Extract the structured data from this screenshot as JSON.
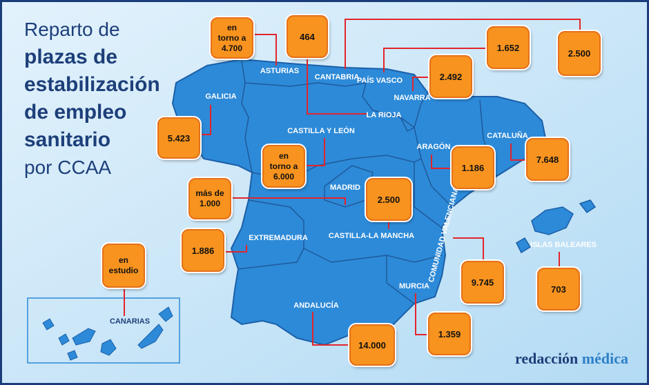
{
  "title": {
    "intro": "Reparto de",
    "bold": [
      "plazas de",
      "estabilización",
      "de empleo",
      "sanitario"
    ],
    "outro": "por CCAA"
  },
  "regions": [
    {
      "name": "GALICIA",
      "value": "5.423"
    },
    {
      "name": "ASTURIAS",
      "value": "en torno a 4.700"
    },
    {
      "name": "CANTABRIA",
      "value": "2.500"
    },
    {
      "name": "PAÍS VASCO",
      "value": "1.652"
    },
    {
      "name": "NAVARRA",
      "value": "2.492"
    },
    {
      "name": "LA RIOJA",
      "value": "464"
    },
    {
      "name": "CASTILLA Y LEÓN",
      "value": "en torno a 6.000"
    },
    {
      "name": "ARAGÓN",
      "value": "1.186"
    },
    {
      "name": "CATALUÑA",
      "value": "7.648"
    },
    {
      "name": "MADRID",
      "value": "más de 1.000"
    },
    {
      "name": "CASTILLA-LA MANCHA",
      "value": "2.500"
    },
    {
      "name": "EXTREMADURA",
      "value": "1.886"
    },
    {
      "name": "COMUNIDAD VALENCIANA",
      "value": "9.745"
    },
    {
      "name": "ISLAS BALEARES",
      "value": "703"
    },
    {
      "name": "MURCIA",
      "value": "1.359"
    },
    {
      "name": "ANDALUCÍA",
      "value": "14.000"
    },
    {
      "name": "CANARIAS",
      "value": "en estudio"
    }
  ],
  "brand": {
    "first": "redacción",
    "second": "médica"
  }
}
